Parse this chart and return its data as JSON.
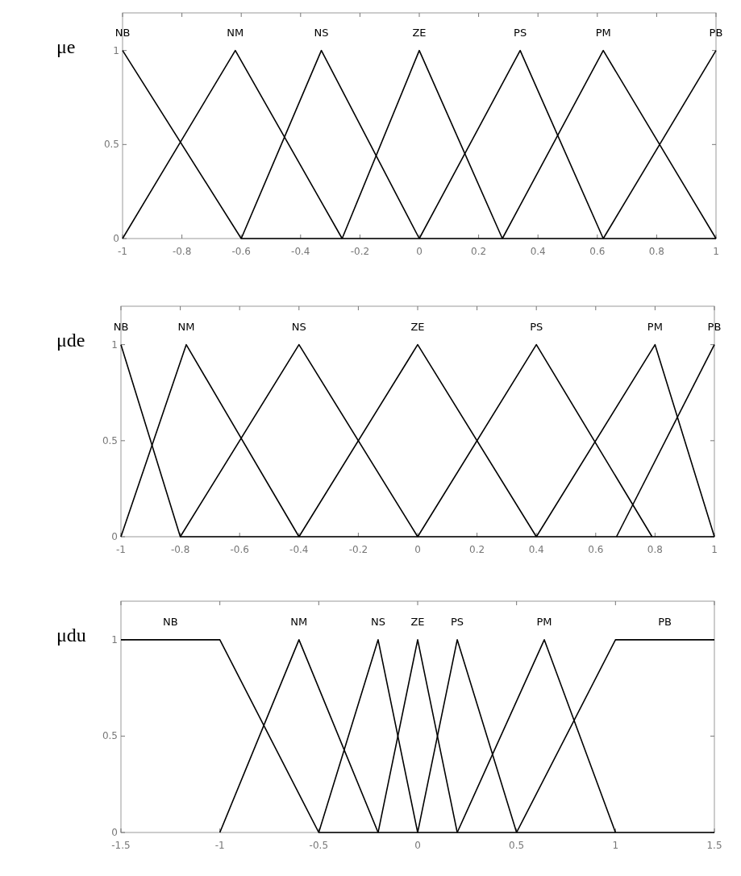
{
  "chart_data": [
    {
      "type": "line",
      "ylabel": "μe",
      "xlim": [
        -1,
        1
      ],
      "ylim": [
        0,
        1.2
      ],
      "xticks": [
        -1,
        -0.8,
        -0.6,
        -0.4,
        -0.2,
        0,
        0.2,
        0.4,
        0.6,
        0.8,
        1
      ],
      "yticks": [
        0,
        0.5,
        1
      ],
      "grid": false,
      "marker": "none",
      "line_style": "solid",
      "series": [
        {
          "name": "NB",
          "color": "#000000",
          "x": [
            -1,
            -0.6,
            1
          ],
          "values": [
            1,
            0,
            0
          ]
        },
        {
          "name": "NM",
          "color": "#000000",
          "x": [
            -1,
            -0.62,
            -0.26
          ],
          "values": [
            0,
            1,
            0
          ]
        },
        {
          "name": "NS",
          "color": "#000000",
          "x": [
            -0.6,
            -0.33,
            0
          ],
          "values": [
            0,
            1,
            0
          ]
        },
        {
          "name": "ZE",
          "color": "#000000",
          "x": [
            -0.26,
            0,
            0.28
          ],
          "values": [
            0,
            1,
            0
          ]
        },
        {
          "name": "PS",
          "color": "#000000",
          "x": [
            0,
            0.34,
            0.62
          ],
          "values": [
            0,
            1,
            0
          ]
        },
        {
          "name": "PM",
          "color": "#000000",
          "x": [
            0.28,
            0.62,
            1
          ],
          "values": [
            0,
            1,
            0
          ]
        },
        {
          "name": "PB",
          "color": "#000000",
          "x": [
            0.62,
            1
          ],
          "values": [
            0,
            1
          ]
        }
      ]
    },
    {
      "type": "line",
      "ylabel": "μde",
      "xlim": [
        -1,
        1
      ],
      "ylim": [
        0,
        1.2
      ],
      "xticks": [
        -1,
        -0.8,
        -0.6,
        -0.4,
        -0.2,
        0,
        0.2,
        0.4,
        0.6,
        0.8,
        1
      ],
      "yticks": [
        0,
        0.5,
        1
      ],
      "grid": false,
      "marker": "none",
      "line_style": "solid",
      "series": [
        {
          "name": "NB",
          "color": "#000000",
          "x": [
            -1,
            -0.8,
            1
          ],
          "values": [
            1,
            0,
            0
          ]
        },
        {
          "name": "NM",
          "color": "#000000",
          "x": [
            -1,
            -0.78,
            -0.4
          ],
          "values": [
            0,
            1,
            0
          ]
        },
        {
          "name": "NS",
          "color": "#000000",
          "x": [
            -0.8,
            -0.4,
            0
          ],
          "values": [
            0,
            1,
            0
          ]
        },
        {
          "name": "ZE",
          "color": "#000000",
          "x": [
            -0.4,
            0,
            0.4
          ],
          "values": [
            0,
            1,
            0
          ]
        },
        {
          "name": "PS",
          "color": "#000000",
          "x": [
            0,
            0.4,
            0.79
          ],
          "values": [
            0,
            1,
            0
          ]
        },
        {
          "name": "PM",
          "color": "#000000",
          "x": [
            0.4,
            0.8,
            1
          ],
          "values": [
            0,
            1,
            0
          ]
        },
        {
          "name": "PB",
          "color": "#000000",
          "x": [
            0.67,
            1
          ],
          "values": [
            0,
            1
          ]
        }
      ]
    },
    {
      "type": "line",
      "ylabel": "μdu",
      "xlim": [
        -1.5,
        1.5
      ],
      "ylim": [
        0,
        1.2
      ],
      "xticks": [
        -1.5,
        -1,
        -0.5,
        0,
        0.5,
        1,
        1.5
      ],
      "yticks": [
        0,
        0.5,
        1
      ],
      "grid": false,
      "marker": "none",
      "line_style": "solid",
      "series": [
        {
          "name": "NB",
          "color": "#000000",
          "x": [
            -1.5,
            -1,
            -0.5,
            1.5
          ],
          "values": [
            1,
            1,
            0,
            0
          ]
        },
        {
          "name": "NM",
          "color": "#000000",
          "x": [
            -1,
            -0.6,
            -0.2
          ],
          "values": [
            0,
            1,
            0
          ]
        },
        {
          "name": "NS",
          "color": "#000000",
          "x": [
            -0.5,
            -0.2,
            0
          ],
          "values": [
            0,
            1,
            0
          ]
        },
        {
          "name": "ZE",
          "color": "#000000",
          "x": [
            -0.2,
            0,
            0.2
          ],
          "values": [
            0,
            1,
            0
          ]
        },
        {
          "name": "PS",
          "color": "#000000",
          "x": [
            0,
            0.2,
            0.5
          ],
          "values": [
            0,
            1,
            0
          ]
        },
        {
          "name": "PM",
          "color": "#000000",
          "x": [
            0.2,
            0.64,
            1
          ],
          "values": [
            0,
            1,
            0
          ]
        },
        {
          "name": "PB",
          "color": "#000000",
          "x": [
            0.5,
            1,
            1.5
          ],
          "values": [
            0,
            1,
            1
          ]
        }
      ]
    }
  ]
}
